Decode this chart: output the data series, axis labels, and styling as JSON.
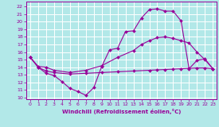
{
  "xlabel": "Windchill (Refroidissement éolien,°C)",
  "bg_color": "#b2e8e8",
  "grid_color": "#ffffff",
  "line_color": "#990099",
  "xlim": [
    -0.5,
    23.5
  ],
  "ylim": [
    9.8,
    22.7
  ],
  "xticks": [
    0,
    1,
    2,
    3,
    4,
    5,
    6,
    7,
    8,
    9,
    10,
    11,
    12,
    13,
    14,
    15,
    16,
    17,
    18,
    19,
    20,
    21,
    22,
    23
  ],
  "yticks": [
    10,
    11,
    12,
    13,
    14,
    15,
    16,
    17,
    18,
    19,
    20,
    21,
    22
  ],
  "line1_x": [
    0,
    1,
    2,
    3,
    4,
    5,
    6,
    7,
    8,
    9,
    10,
    11,
    12,
    13,
    14,
    15,
    16,
    17,
    18,
    19,
    20,
    21,
    22,
    23
  ],
  "line1_y": [
    15.3,
    14.0,
    13.2,
    12.9,
    12.1,
    11.2,
    10.8,
    10.3,
    11.3,
    14.1,
    16.3,
    16.5,
    18.7,
    18.8,
    20.5,
    21.6,
    21.7,
    21.4,
    21.4,
    20.1,
    13.8,
    14.9,
    15.1,
    13.8
  ],
  "line2_x": [
    0,
    1,
    2,
    3,
    5,
    7,
    9,
    11,
    13,
    15,
    16,
    17,
    18,
    19,
    20,
    21,
    22,
    23
  ],
  "line2_y": [
    15.3,
    14.0,
    13.5,
    13.3,
    13.1,
    13.2,
    13.3,
    13.4,
    13.5,
    13.6,
    13.65,
    13.7,
    13.75,
    13.8,
    13.85,
    13.9,
    13.9,
    13.8
  ],
  "line3_x": [
    0,
    1,
    2,
    3,
    5,
    7,
    9,
    11,
    13,
    14,
    15,
    16,
    17,
    18,
    19,
    20,
    21,
    22,
    23
  ],
  "line3_y": [
    15.3,
    14.1,
    14.0,
    13.6,
    13.3,
    13.6,
    14.2,
    15.3,
    16.2,
    17.0,
    17.5,
    17.9,
    18.0,
    17.8,
    17.5,
    17.2,
    16.0,
    15.0,
    13.8
  ]
}
